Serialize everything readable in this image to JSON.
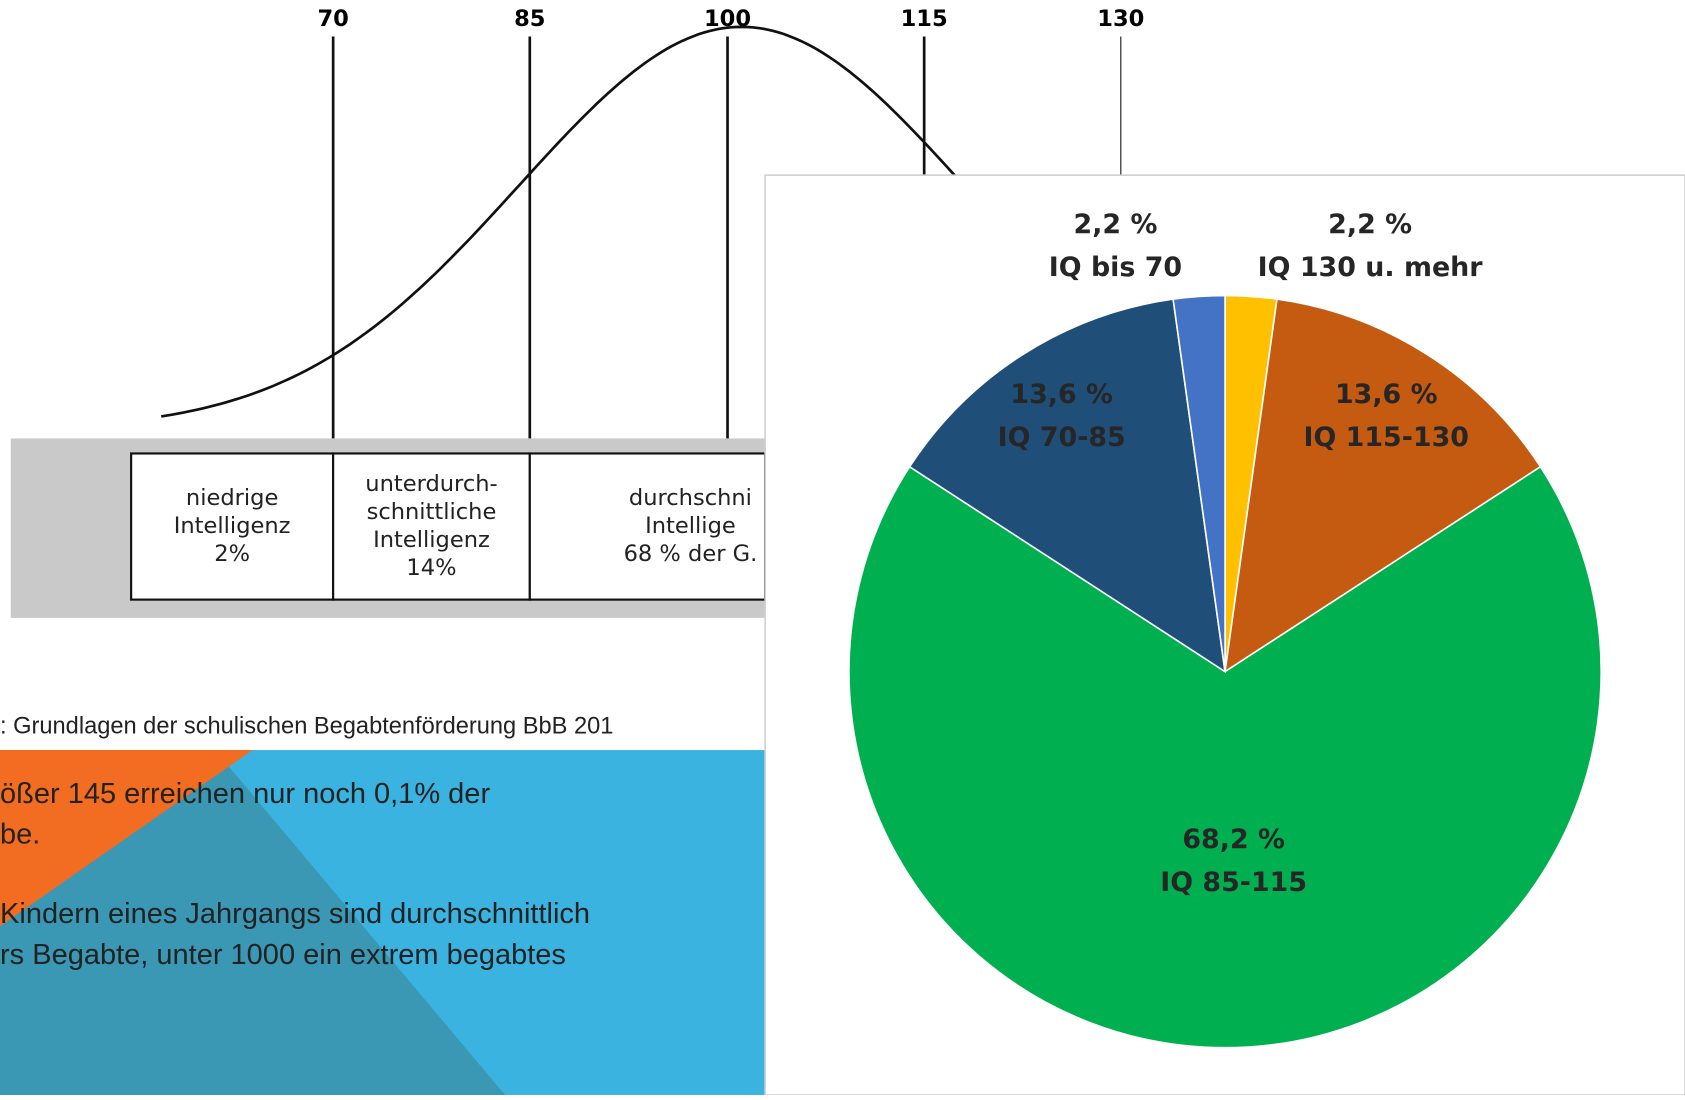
{
  "illustration": {
    "scale_labels": [
      "70",
      "85",
      "100",
      "115",
      "130"
    ],
    "boxes": [
      [
        "niedrige",
        "Intelligenz",
        "2%"
      ],
      [
        "unterdurch-",
        "schnittliche",
        "Intelligenz",
        "14%"
      ],
      [
        "durchschni",
        "Intellige",
        "68 % der G."
      ]
    ]
  },
  "caption": ": Grundlagen der schulischen Begabtenförderung BbB 201",
  "bullets": [
    [
      "ößer 145 erreichen nur noch 0,1% der",
      "be."
    ],
    [
      "Kindern eines Jahrgangs sind durchschnittlich",
      "rs Begabte, unter 1000 ein extrem begabtes"
    ]
  ],
  "chart_data": {
    "type": "pie",
    "categories": [
      "IQ 130 u. mehr",
      "IQ 115-130",
      "IQ 85-115",
      "IQ  70-85",
      "IQ  bis 70"
    ],
    "values": [
      2.2,
      13.6,
      68.2,
      13.6,
      2.2
    ],
    "value_labels": [
      "2,2 %",
      "13,6 %",
      "68,2 %",
      "13,6 %",
      "2,2 %"
    ],
    "colors": [
      "#ffc000",
      "#c55a11",
      "#00b050",
      "#1f4e79",
      "#4472c4"
    ]
  }
}
